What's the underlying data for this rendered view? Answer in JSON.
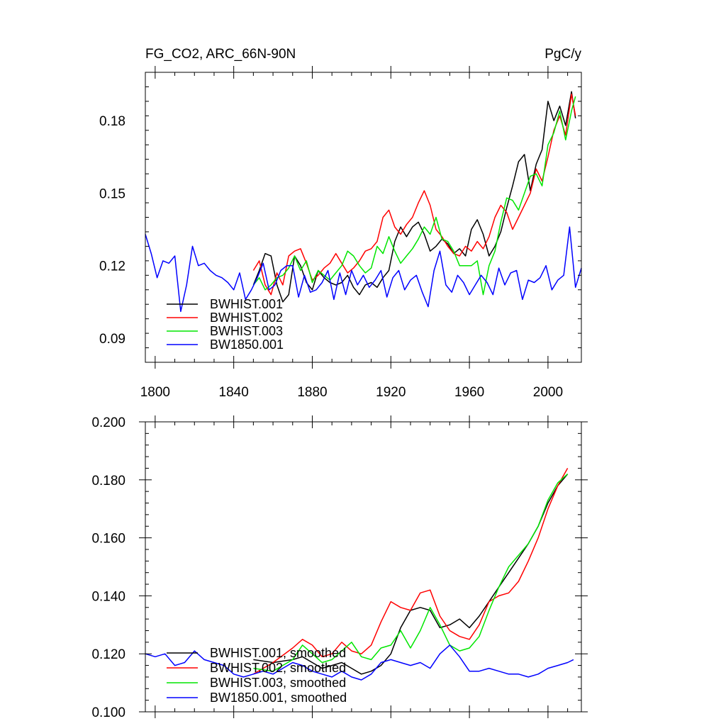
{
  "colors": {
    "BWHIST.001": "#000000",
    "BWHIST.002": "#ff0000",
    "BWHIST.003": "#00e600",
    "BW1850.001": "#0000ff"
  },
  "chart_data": [
    {
      "type": "line",
      "title": "FG_CO2, ARC_66N-90N",
      "units": "PgC/y",
      "xlabel": "",
      "ylabel": "",
      "xlim": [
        1795,
        2017
      ],
      "ylim": [
        0.08,
        0.2
      ],
      "xticks": [
        1800,
        1840,
        1880,
        1920,
        1960,
        2000
      ],
      "yticks": [
        0.09,
        0.12,
        0.15,
        0.18
      ],
      "ytick_labels": [
        "0.09",
        "0.12",
        "0.15",
        "0.18"
      ],
      "legend_position": "bottom-left",
      "legend": [
        "BWHIST.001",
        "BWHIST.002",
        "BWHIST.003",
        "BW1850.001"
      ],
      "series": [
        {
          "name": "BWHIST.001",
          "x": [
            1850,
            1853,
            1856,
            1859,
            1862,
            1865,
            1868,
            1871,
            1874,
            1877,
            1880,
            1883,
            1886,
            1889,
            1892,
            1895,
            1898,
            1901,
            1904,
            1907,
            1910,
            1913,
            1916,
            1919,
            1922,
            1925,
            1928,
            1931,
            1934,
            1937,
            1940,
            1943,
            1946,
            1949,
            1952,
            1955,
            1958,
            1961,
            1964,
            1967,
            1970,
            1973,
            1976,
            1979,
            1982,
            1985,
            1988,
            1991,
            1994,
            1997,
            2000,
            2003,
            2006,
            2009,
            2012,
            2014
          ],
          "values": [
            0.112,
            0.118,
            0.125,
            0.124,
            0.112,
            0.105,
            0.108,
            0.124,
            0.12,
            0.113,
            0.11,
            0.118,
            0.115,
            0.113,
            0.112,
            0.113,
            0.116,
            0.111,
            0.108,
            0.112,
            0.113,
            0.111,
            0.115,
            0.118,
            0.13,
            0.136,
            0.132,
            0.136,
            0.138,
            0.133,
            0.126,
            0.128,
            0.131,
            0.129,
            0.125,
            0.127,
            0.124,
            0.135,
            0.139,
            0.133,
            0.124,
            0.128,
            0.134,
            0.144,
            0.153,
            0.163,
            0.166,
            0.151,
            0.162,
            0.168,
            0.188,
            0.18,
            0.186,
            0.178,
            0.192,
            0.181
          ]
        },
        {
          "name": "BWHIST.002",
          "x": [
            1850,
            1853,
            1856,
            1859,
            1862,
            1865,
            1868,
            1871,
            1874,
            1877,
            1880,
            1883,
            1886,
            1889,
            1892,
            1895,
            1898,
            1901,
            1904,
            1907,
            1910,
            1913,
            1916,
            1919,
            1922,
            1925,
            1928,
            1931,
            1934,
            1937,
            1940,
            1943,
            1946,
            1949,
            1952,
            1955,
            1958,
            1961,
            1964,
            1967,
            1970,
            1973,
            1976,
            1979,
            1982,
            1985,
            1988,
            1991,
            1994,
            1997,
            2000,
            2003,
            2006,
            2009,
            2012,
            2014
          ],
          "values": [
            0.118,
            0.122,
            0.112,
            0.108,
            0.117,
            0.112,
            0.124,
            0.126,
            0.127,
            0.121,
            0.114,
            0.116,
            0.119,
            0.121,
            0.125,
            0.121,
            0.117,
            0.119,
            0.122,
            0.126,
            0.127,
            0.13,
            0.14,
            0.143,
            0.136,
            0.133,
            0.137,
            0.14,
            0.146,
            0.151,
            0.145,
            0.135,
            0.132,
            0.128,
            0.125,
            0.124,
            0.128,
            0.126,
            0.13,
            0.127,
            0.132,
            0.14,
            0.145,
            0.142,
            0.135,
            0.14,
            0.145,
            0.15,
            0.16,
            0.155,
            0.165,
            0.176,
            0.182,
            0.174,
            0.191,
            0.182
          ]
        },
        {
          "name": "BWHIST.003",
          "x": [
            1850,
            1853,
            1856,
            1859,
            1862,
            1865,
            1868,
            1871,
            1874,
            1877,
            1880,
            1883,
            1886,
            1889,
            1892,
            1895,
            1898,
            1901,
            1904,
            1907,
            1910,
            1913,
            1916,
            1919,
            1922,
            1925,
            1928,
            1931,
            1934,
            1937,
            1940,
            1943,
            1946,
            1949,
            1952,
            1955,
            1958,
            1961,
            1964,
            1967,
            1970,
            1973,
            1976,
            1979,
            1982,
            1985,
            1988,
            1991,
            1994,
            1997,
            2000,
            2003,
            2006,
            2009,
            2012,
            2014
          ],
          "values": [
            0.112,
            0.115,
            0.11,
            0.112,
            0.115,
            0.116,
            0.119,
            0.124,
            0.118,
            0.122,
            0.113,
            0.118,
            0.116,
            0.114,
            0.117,
            0.12,
            0.126,
            0.124,
            0.12,
            0.117,
            0.119,
            0.128,
            0.125,
            0.132,
            0.126,
            0.121,
            0.124,
            0.127,
            0.131,
            0.136,
            0.133,
            0.14,
            0.131,
            0.13,
            0.126,
            0.12,
            0.12,
            0.12,
            0.122,
            0.108,
            0.12,
            0.126,
            0.138,
            0.148,
            0.147,
            0.143,
            0.15,
            0.157,
            0.158,
            0.153,
            0.17,
            0.175,
            0.184,
            0.172,
            0.184,
            0.19
          ]
        },
        {
          "name": "BW1850.001",
          "x": [
            1795,
            1798,
            1801,
            1804,
            1807,
            1810,
            1813,
            1816,
            1819,
            1822,
            1825,
            1828,
            1831,
            1834,
            1837,
            1840,
            1843,
            1846,
            1849,
            1852,
            1855,
            1858,
            1861,
            1864,
            1867,
            1870,
            1873,
            1876,
            1879,
            1882,
            1885,
            1888,
            1891,
            1894,
            1897,
            1900,
            1903,
            1906,
            1909,
            1912,
            1915,
            1918,
            1921,
            1924,
            1927,
            1930,
            1933,
            1936,
            1939,
            1942,
            1945,
            1948,
            1951,
            1954,
            1957,
            1960,
            1963,
            1966,
            1969,
            1972,
            1975,
            1978,
            1981,
            1984,
            1987,
            1990,
            1993,
            1996,
            1999,
            2002,
            2005,
            2008,
            2011,
            2014,
            2017
          ],
          "values": [
            0.133,
            0.125,
            0.115,
            0.122,
            0.121,
            0.124,
            0.101,
            0.112,
            0.128,
            0.12,
            0.121,
            0.118,
            0.116,
            0.115,
            0.113,
            0.11,
            0.117,
            0.106,
            0.11,
            0.115,
            0.121,
            0.11,
            0.112,
            0.118,
            0.12,
            0.12,
            0.107,
            0.116,
            0.109,
            0.11,
            0.113,
            0.118,
            0.106,
            0.117,
            0.108,
            0.118,
            0.112,
            0.116,
            0.111,
            0.114,
            0.118,
            0.107,
            0.115,
            0.118,
            0.11,
            0.114,
            0.116,
            0.109,
            0.103,
            0.118,
            0.126,
            0.112,
            0.109,
            0.116,
            0.113,
            0.108,
            0.112,
            0.116,
            0.113,
            0.108,
            0.119,
            0.112,
            0.117,
            0.118,
            0.106,
            0.114,
            0.113,
            0.115,
            0.12,
            0.11,
            0.114,
            0.116,
            0.136,
            0.111,
            0.119
          ]
        }
      ]
    },
    {
      "type": "line",
      "title": "",
      "xlabel": "",
      "ylabel": "",
      "xlim": [
        1795,
        2017
      ],
      "ylim": [
        0.1,
        0.2
      ],
      "xticks": [
        1800,
        1840,
        1880,
        1920,
        1960,
        2000
      ],
      "yticks": [
        0.1,
        0.12,
        0.14,
        0.16,
        0.18,
        0.2
      ],
      "ytick_labels": [
        "0.100",
        "0.120",
        "0.140",
        "0.160",
        "0.180",
        "0.200"
      ],
      "legend_position": "bottom-left",
      "legend": [
        "BWHIST.001, smoothed",
        "BWHIST.002, smoothed",
        "BWHIST.003, smoothed",
        "BW1850.001, smoothed"
      ],
      "series": [
        {
          "name": "BWHIST.001, smoothed",
          "x": [
            1850,
            1860,
            1870,
            1875,
            1880,
            1885,
            1890,
            1895,
            1900,
            1905,
            1910,
            1915,
            1920,
            1925,
            1930,
            1935,
            1940,
            1945,
            1950,
            1955,
            1960,
            1965,
            1970,
            1975,
            1980,
            1985,
            1990,
            1995,
            2000,
            2005,
            2010
          ],
          "values": [
            0.118,
            0.117,
            0.118,
            0.119,
            0.117,
            0.115,
            0.116,
            0.117,
            0.115,
            0.113,
            0.114,
            0.116,
            0.12,
            0.129,
            0.135,
            0.136,
            0.135,
            0.129,
            0.13,
            0.132,
            0.129,
            0.133,
            0.138,
            0.143,
            0.148,
            0.153,
            0.158,
            0.164,
            0.172,
            0.178,
            0.182
          ]
        },
        {
          "name": "BWHIST.002, smoothed",
          "x": [
            1850,
            1860,
            1870,
            1875,
            1880,
            1885,
            1890,
            1895,
            1900,
            1905,
            1910,
            1915,
            1920,
            1925,
            1930,
            1935,
            1940,
            1945,
            1950,
            1955,
            1960,
            1965,
            1970,
            1975,
            1980,
            1985,
            1990,
            1995,
            2000,
            2005,
            2010
          ],
          "values": [
            0.113,
            0.117,
            0.122,
            0.125,
            0.123,
            0.119,
            0.12,
            0.124,
            0.121,
            0.12,
            0.123,
            0.131,
            0.138,
            0.136,
            0.135,
            0.141,
            0.142,
            0.133,
            0.128,
            0.126,
            0.125,
            0.13,
            0.138,
            0.14,
            0.141,
            0.145,
            0.152,
            0.16,
            0.17,
            0.178,
            0.184
          ]
        },
        {
          "name": "BWHIST.003, smoothed",
          "x": [
            1850,
            1860,
            1870,
            1875,
            1880,
            1885,
            1890,
            1895,
            1900,
            1905,
            1910,
            1915,
            1920,
            1925,
            1930,
            1935,
            1940,
            1945,
            1950,
            1955,
            1960,
            1965,
            1970,
            1975,
            1980,
            1985,
            1990,
            1995,
            2000,
            2005,
            2010
          ],
          "values": [
            0.115,
            0.114,
            0.118,
            0.123,
            0.12,
            0.117,
            0.118,
            0.121,
            0.124,
            0.119,
            0.118,
            0.122,
            0.123,
            0.128,
            0.122,
            0.128,
            0.136,
            0.13,
            0.123,
            0.121,
            0.122,
            0.126,
            0.135,
            0.143,
            0.15,
            0.154,
            0.158,
            0.164,
            0.173,
            0.179,
            0.182
          ]
        },
        {
          "name": "BW1850.001, smoothed",
          "x": [
            1795,
            1800,
            1805,
            1810,
            1815,
            1820,
            1825,
            1830,
            1835,
            1840,
            1845,
            1850,
            1855,
            1860,
            1865,
            1870,
            1875,
            1880,
            1885,
            1890,
            1895,
            1900,
            1905,
            1910,
            1915,
            1920,
            1925,
            1930,
            1935,
            1940,
            1945,
            1950,
            1955,
            1960,
            1965,
            1970,
            1975,
            1980,
            1985,
            1990,
            1995,
            2000,
            2005,
            2010,
            2013
          ],
          "values": [
            0.12,
            0.119,
            0.12,
            0.116,
            0.117,
            0.121,
            0.118,
            0.117,
            0.116,
            0.113,
            0.112,
            0.113,
            0.114,
            0.113,
            0.115,
            0.117,
            0.116,
            0.114,
            0.113,
            0.112,
            0.114,
            0.112,
            0.111,
            0.113,
            0.117,
            0.118,
            0.117,
            0.116,
            0.117,
            0.115,
            0.12,
            0.123,
            0.119,
            0.114,
            0.114,
            0.115,
            0.114,
            0.113,
            0.113,
            0.112,
            0.113,
            0.115,
            0.116,
            0.117,
            0.118
          ]
        }
      ]
    }
  ]
}
